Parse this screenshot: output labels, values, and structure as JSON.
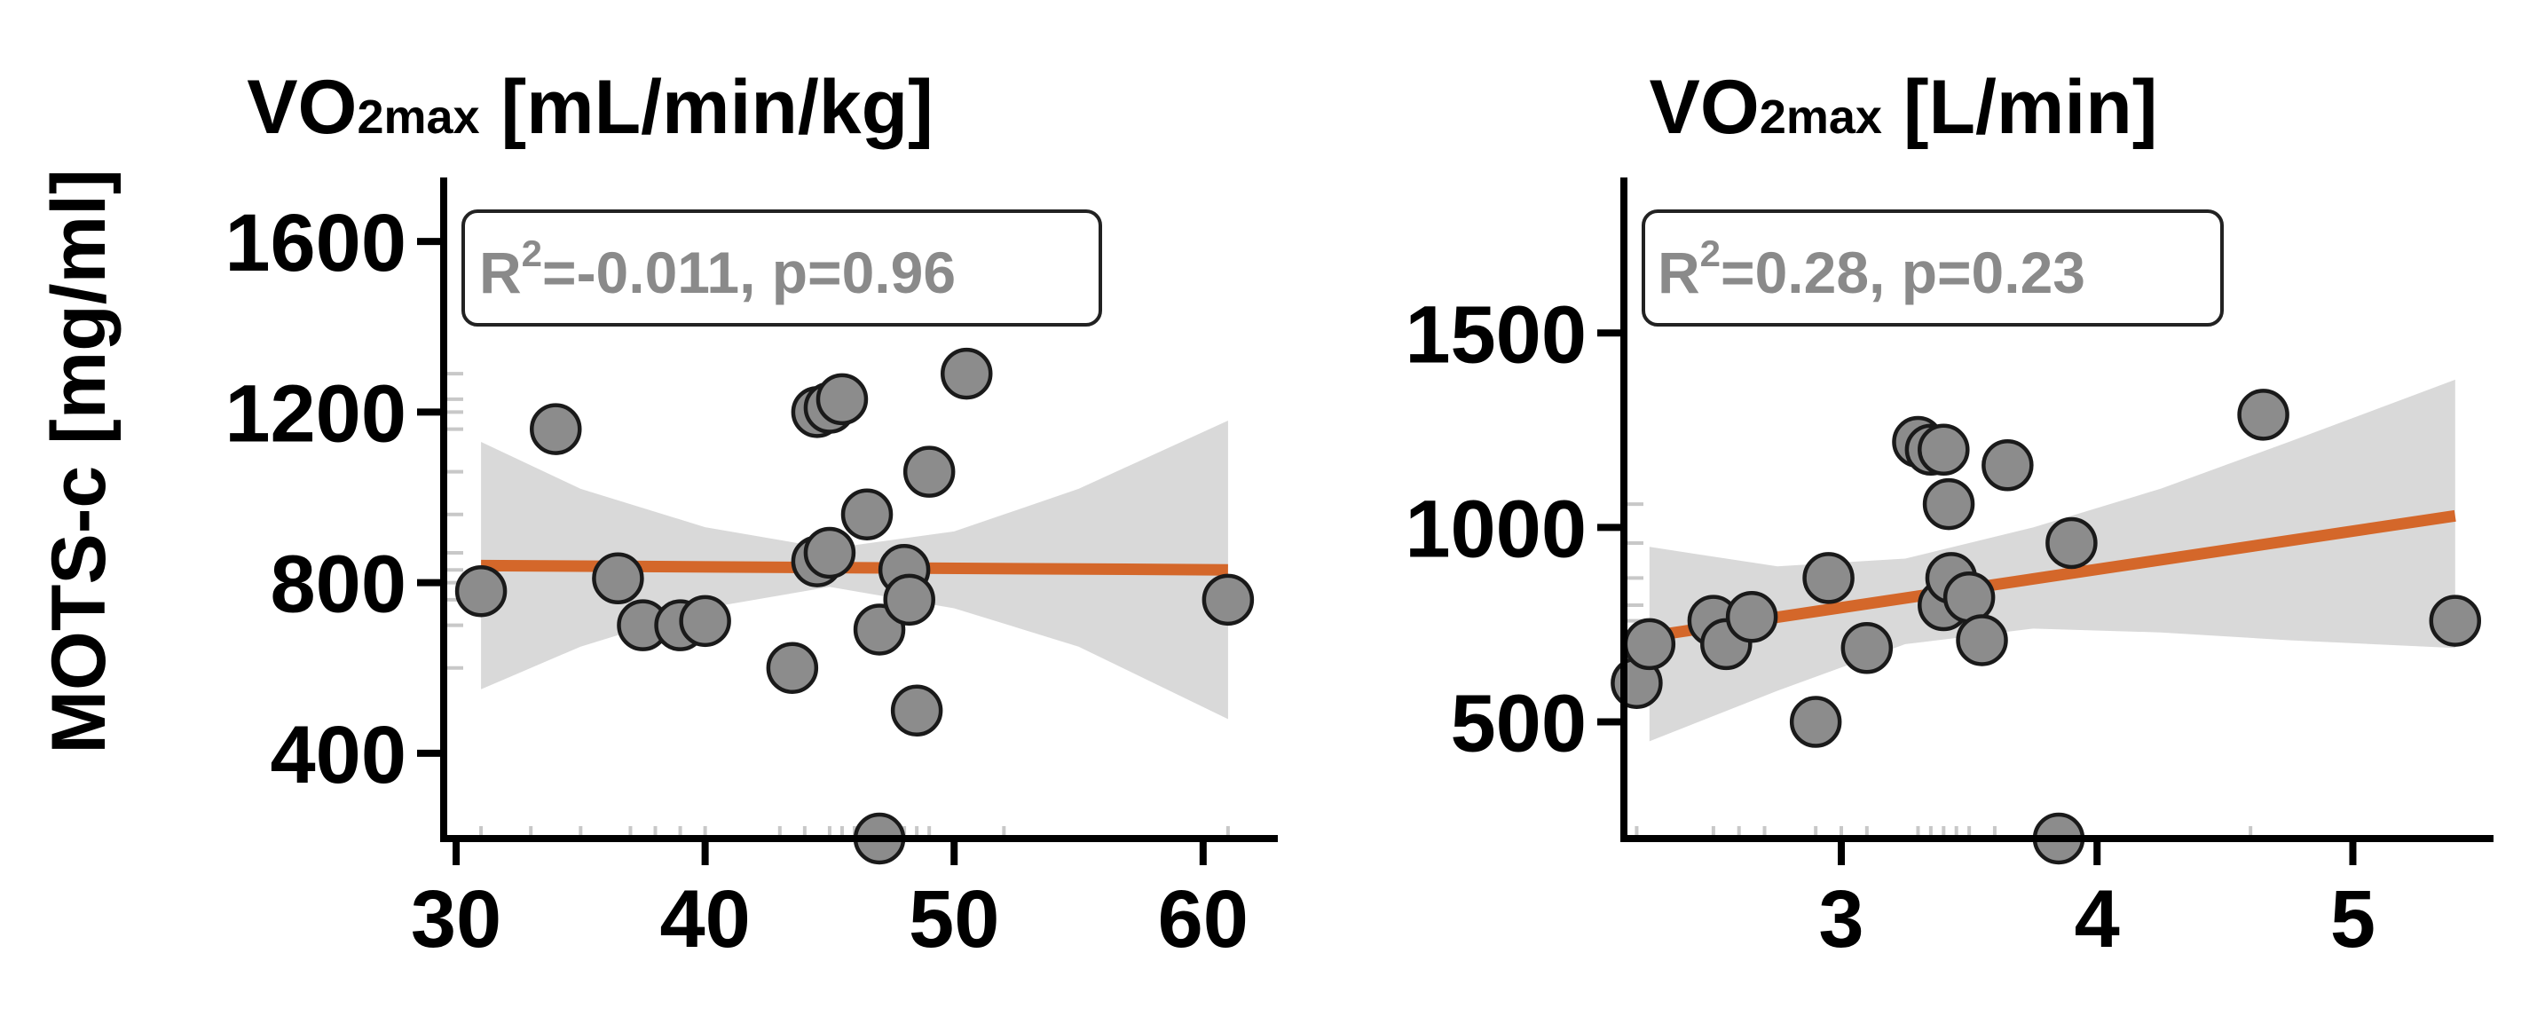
{
  "ylabel": "MOTS-c [mg/ml]",
  "chart_data": [
    {
      "type": "scatter",
      "title_main": "VO",
      "title_sub": "2max",
      "title_rest": " [mL/min/kg]",
      "xlabel": "",
      "ylabel": "MOTS-c [mg/ml]",
      "xlim": [
        29.5,
        63
      ],
      "ylim": [
        200,
        1750
      ],
      "xticks": [
        30,
        40,
        50,
        60
      ],
      "yticks": [
        400,
        800,
        1200,
        1600
      ],
      "stats": {
        "r2_label": "R",
        "r2_sup": "2",
        "r2_rest": "=-0.011, p=0.96"
      },
      "points": [
        [
          31,
          780
        ],
        [
          34,
          1160
        ],
        [
          36.5,
          810
        ],
        [
          37.5,
          700
        ],
        [
          39,
          700
        ],
        [
          40,
          710
        ],
        [
          43.5,
          600
        ],
        [
          44.5,
          850
        ],
        [
          44.5,
          1200
        ],
        [
          45,
          870
        ],
        [
          45,
          1210
        ],
        [
          45.5,
          1230
        ],
        [
          46.5,
          960
        ],
        [
          47,
          690
        ],
        [
          47,
          200
        ],
        [
          48,
          830
        ],
        [
          48.2,
          760
        ],
        [
          48.5,
          500
        ],
        [
          49,
          1060
        ],
        [
          50.5,
          1290
        ],
        [
          61,
          760
        ]
      ],
      "fit": {
        "x": [
          31,
          61
        ],
        "y": [
          840,
          830
        ]
      },
      "ci_band": {
        "x": [
          31,
          35,
          40,
          45,
          50,
          55,
          61
        ],
        "upper": [
          1130,
          1020,
          930,
          880,
          920,
          1020,
          1180
        ],
        "lower": [
          550,
          650,
          740,
          790,
          740,
          650,
          480
        ]
      },
      "rug_x": [
        31,
        33,
        35,
        37,
        38,
        39,
        40,
        43,
        44,
        45,
        45.5,
        46,
        47,
        48,
        48.5,
        49,
        52,
        61
      ],
      "rug_y": [
        600,
        700,
        760,
        800,
        830,
        870,
        960,
        1060,
        1160,
        1200,
        1230,
        1290
      ]
    },
    {
      "type": "scatter",
      "title_main": "VO",
      "title_sub": "2max",
      "title_rest": " [L/min]",
      "xlabel": "",
      "ylabel": "",
      "xlim": [
        2.15,
        5.55
      ],
      "ylim": [
        200,
        1900
      ],
      "xticks": [
        3,
        4,
        5
      ],
      "yticks": [
        500,
        1000,
        1500
      ],
      "stats": {
        "r2_label": "R",
        "r2_sup": "2",
        "r2_rest": "=0.28, p=0.23"
      },
      "points": [
        [
          2.2,
          600
        ],
        [
          2.25,
          700
        ],
        [
          2.5,
          760
        ],
        [
          2.55,
          700
        ],
        [
          2.65,
          770
        ],
        [
          2.9,
          500
        ],
        [
          2.95,
          870
        ],
        [
          3.1,
          690
        ],
        [
          3.3,
          1220
        ],
        [
          3.35,
          1200
        ],
        [
          3.4,
          800
        ],
        [
          3.4,
          1200
        ],
        [
          3.42,
          1060
        ],
        [
          3.43,
          870
        ],
        [
          3.5,
          820
        ],
        [
          3.55,
          710
        ],
        [
          3.65,
          1160
        ],
        [
          3.85,
          200
        ],
        [
          3.9,
          960
        ],
        [
          4.65,
          1290
        ],
        [
          5.4,
          760
        ]
      ],
      "fit": {
        "x": [
          2.25,
          5.4
        ],
        "y": [
          720,
          1030
        ]
      },
      "ci_band": {
        "x": [
          2.25,
          2.75,
          3.25,
          3.75,
          4.25,
          4.75,
          5.4
        ],
        "upper": [
          950,
          900,
          920,
          1000,
          1100,
          1220,
          1380
        ],
        "lower": [
          450,
          580,
          700,
          740,
          730,
          710,
          690
        ]
      },
      "rug_x": [
        2.2,
        2.5,
        2.6,
        2.7,
        2.9,
        3.0,
        3.1,
        3.3,
        3.35,
        3.4,
        3.45,
        3.5,
        3.6,
        3.9,
        4.6
      ],
      "rug_y": [
        600,
        700,
        760,
        800,
        870,
        960,
        1060
      ]
    }
  ]
}
